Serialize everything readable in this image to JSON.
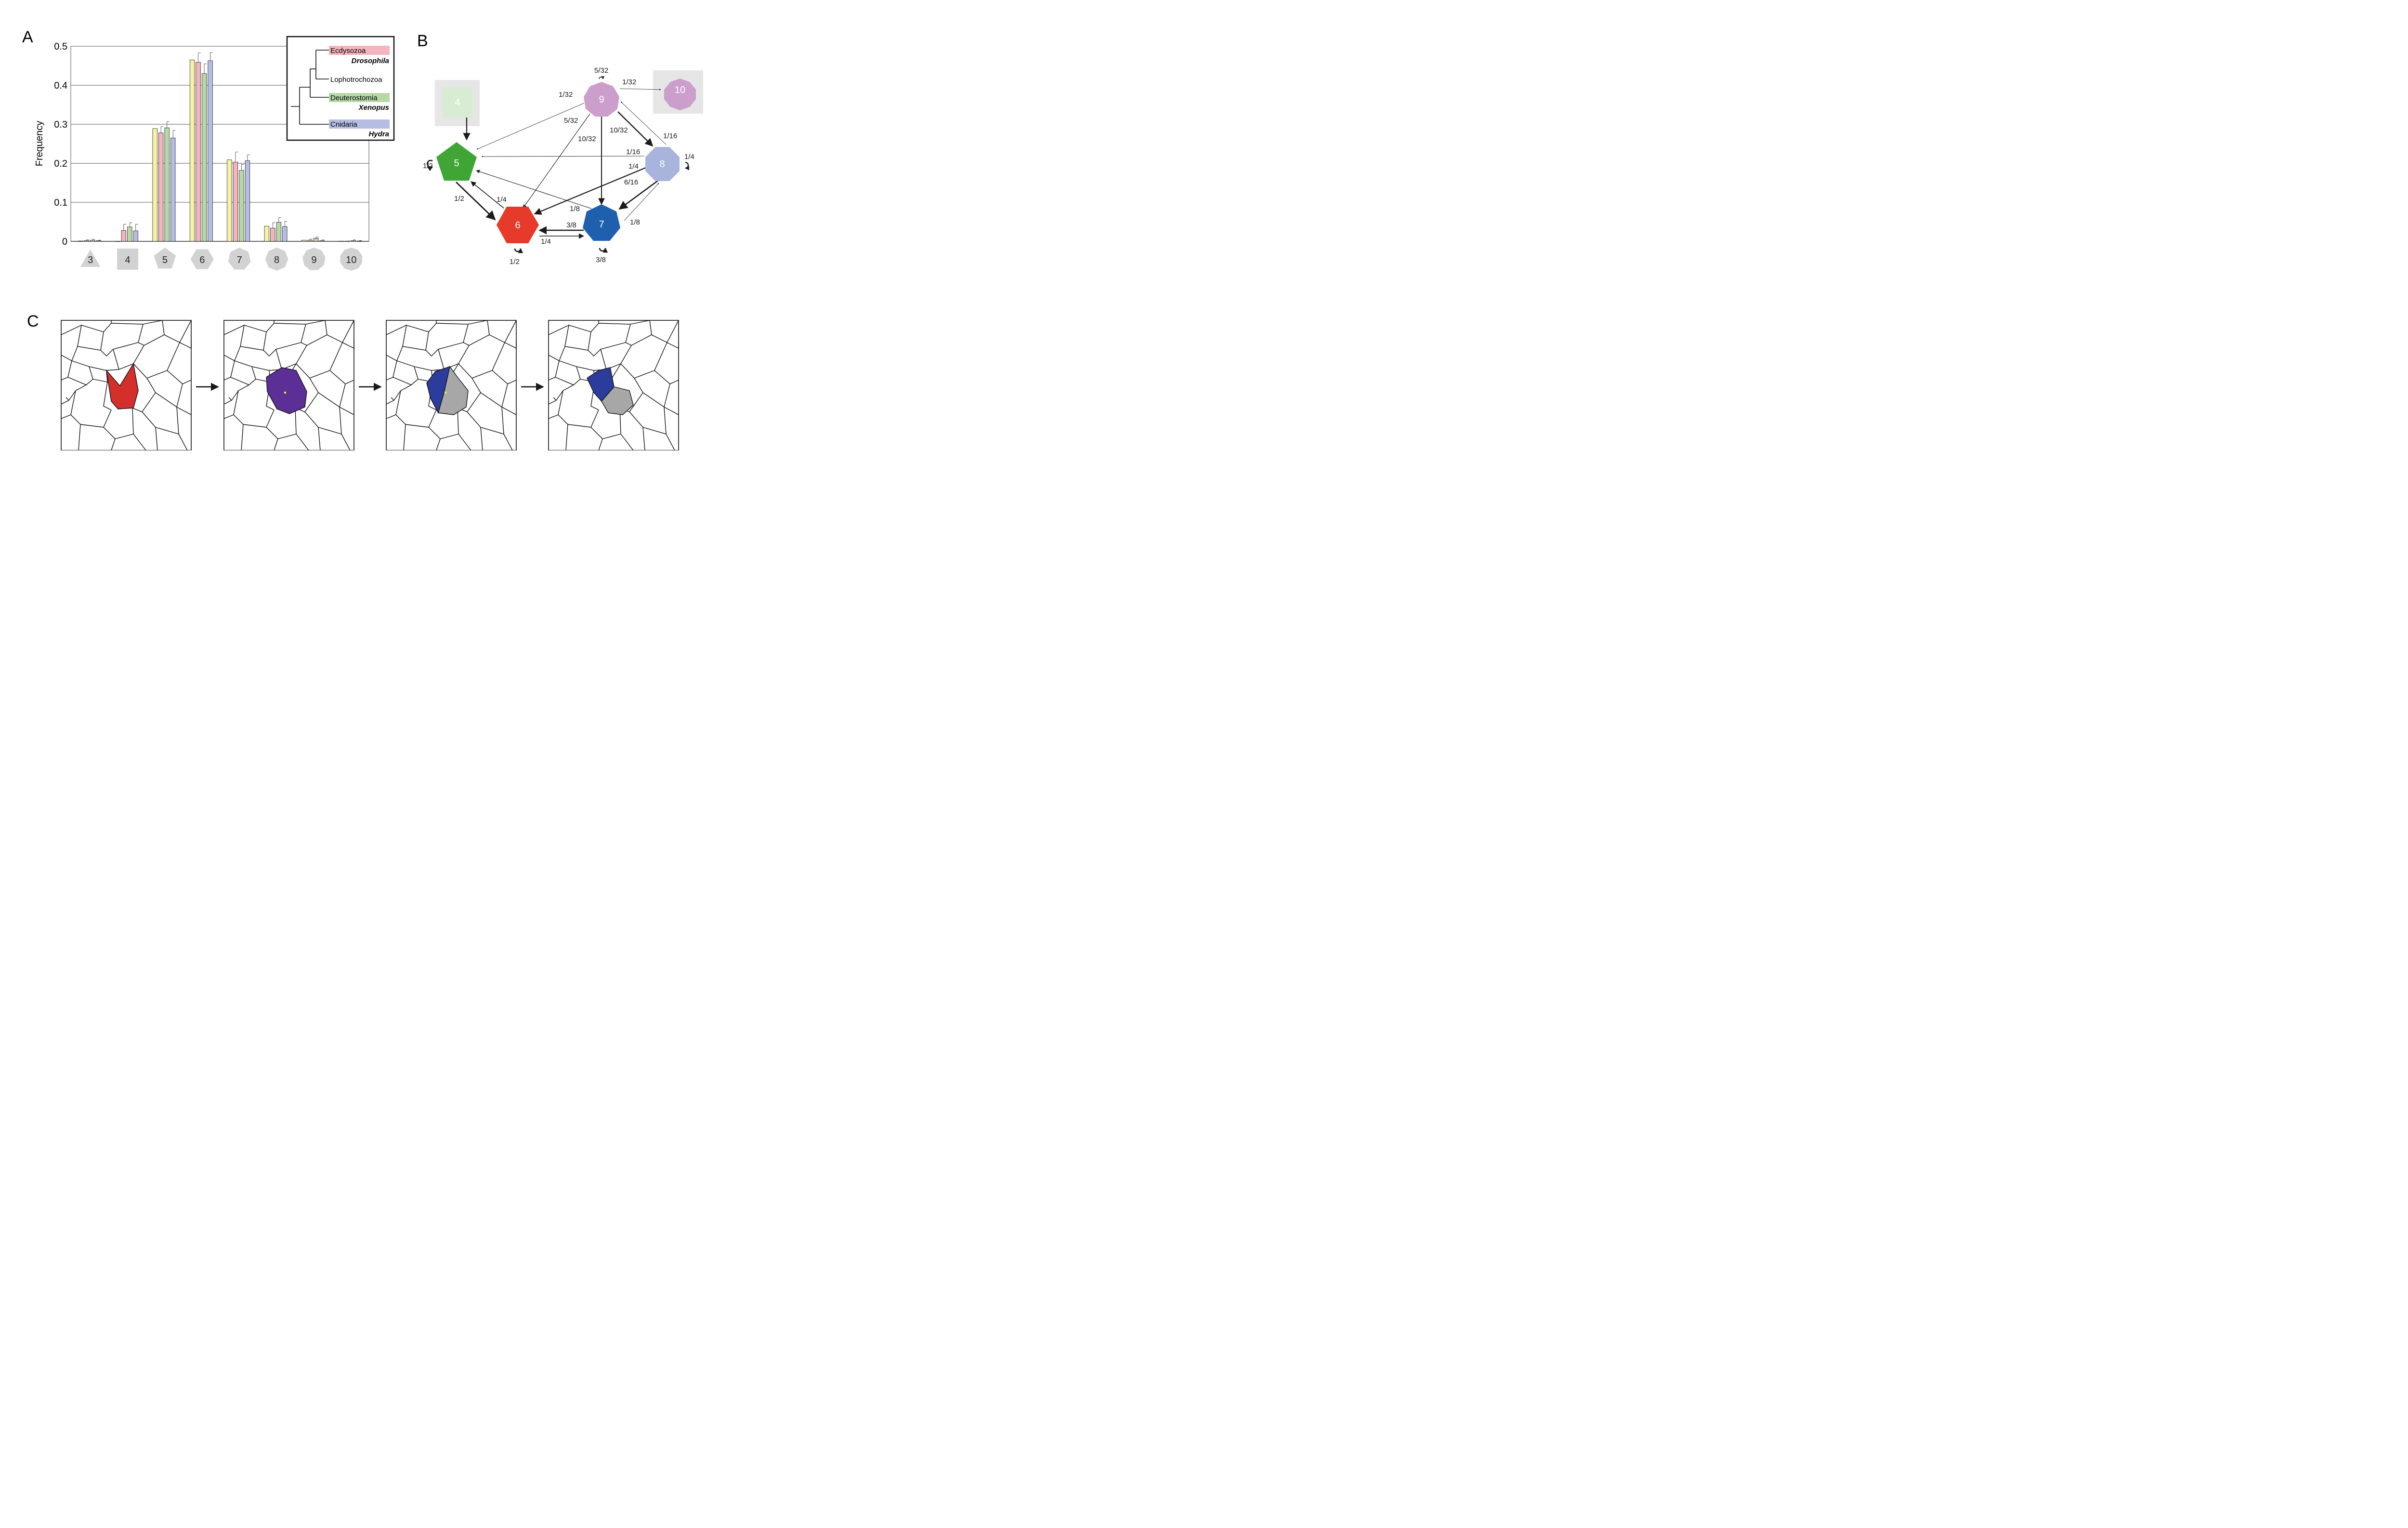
{
  "panel_labels": {
    "a": "A",
    "b": "B",
    "c": "C"
  },
  "chart_data": {
    "type": "bar",
    "ylabel": "Frequency",
    "xlabel": "",
    "ylim": [
      0,
      0.5
    ],
    "y_ticks": [
      "0",
      "0.1",
      "0.2",
      "0.3",
      "0.4",
      "0.5"
    ],
    "grid": true,
    "categories": [
      "3",
      "4",
      "5",
      "6",
      "7",
      "8",
      "9",
      "10"
    ],
    "category_shapes": [
      "triangle",
      "square",
      "pentagon",
      "hexagon",
      "heptagon",
      "octagon",
      "nonagon",
      "decagon"
    ],
    "series": [
      {
        "color": "#f8f2a4",
        "values": [
          0.001,
          0.0,
          0.289,
          0.465,
          0.209,
          0.039,
          0.003,
          0.0005
        ],
        "errors": [
          0,
          0,
          0,
          0,
          0,
          0,
          0,
          0
        ]
      },
      {
        "color": "#f3b4be",
        "values": [
          0.002,
          0.028,
          0.278,
          0.459,
          0.203,
          0.034,
          0.003,
          0.0005
        ],
        "errors": [
          0.002,
          0.016,
          0.016,
          0.024,
          0.026,
          0.014,
          0.003,
          0.0005
        ]
      },
      {
        "color": "#b7d8a6",
        "values": [
          0.003,
          0.037,
          0.291,
          0.43,
          0.182,
          0.049,
          0.008,
          0.002
        ],
        "errors": [
          0.002,
          0.011,
          0.016,
          0.025,
          0.015,
          0.012,
          0.003,
          0.002
        ]
      },
      {
        "color": "#b5bde3",
        "values": [
          0.002,
          0.027,
          0.265,
          0.463,
          0.207,
          0.038,
          0.002,
          0.001
        ],
        "errors": [
          0.001,
          0.017,
          0.019,
          0.021,
          0.015,
          0.013,
          0.002,
          0.001
        ]
      }
    ],
    "legend": {
      "placement": "top-right",
      "entries": [
        {
          "clade": "Ecdysozoa",
          "species": "Drosophila",
          "color": "#f3b4be"
        },
        {
          "clade": "Lophotrochozoa",
          "species": "",
          "color": ""
        },
        {
          "clade": "Deuterostomia",
          "species": "Xenopus",
          "color": "#b7d8a6"
        },
        {
          "clade": "Cnidaria",
          "species": "Hydra",
          "color": "#b5bde3"
        }
      ]
    }
  },
  "transition_diagram": {
    "nodes": [
      {
        "id": "4",
        "label": "4",
        "color": "#d8ecd4",
        "faded": true
      },
      {
        "id": "5",
        "label": "5",
        "color": "#3fa535",
        "faded": false
      },
      {
        "id": "6",
        "label": "6",
        "color": "#e63a2a",
        "faded": false
      },
      {
        "id": "7",
        "label": "7",
        "color": "#1e5fae",
        "faded": false
      },
      {
        "id": "8",
        "label": "8",
        "color": "#a9b4dc",
        "faded": false
      },
      {
        "id": "9",
        "label": "9",
        "color": "#cc9ecb",
        "faded": false
      },
      {
        "id": "10",
        "label": "10",
        "color": "#cc9ecb",
        "faded": true
      }
    ],
    "edge_labels": {
      "self_5": "1/2",
      "self_6": "1/2",
      "self_7": "3/8",
      "self_8": "1/4",
      "self_9": "5/32",
      "e9_10": "1/32",
      "e9_5": "1/32",
      "e9_6": "5/32",
      "e9_7": "10/32",
      "e9_8": "10/32",
      "e8_9": "1/16",
      "e8_5": "1/16",
      "e8_6": "1/4",
      "e8_7": "6/16",
      "e5_6": "1/2",
      "e6_5": "1/4",
      "e7_5": "1/8",
      "e7_8": "1/8",
      "e7_6": "3/8",
      "e6_7": "1/4"
    }
  },
  "division_steps": {
    "panels": [
      {
        "id": "cell-selected",
        "colors": [
          "#d42f2a"
        ]
      },
      {
        "id": "cell-grown",
        "colors": [
          "#5c2f96"
        ]
      },
      {
        "id": "cell-dividing",
        "colors": [
          "#2b3c9c",
          "#a7a7a7"
        ]
      },
      {
        "id": "cell-divided",
        "colors": [
          "#2b3c9c",
          "#a7a7a7"
        ]
      }
    ]
  }
}
